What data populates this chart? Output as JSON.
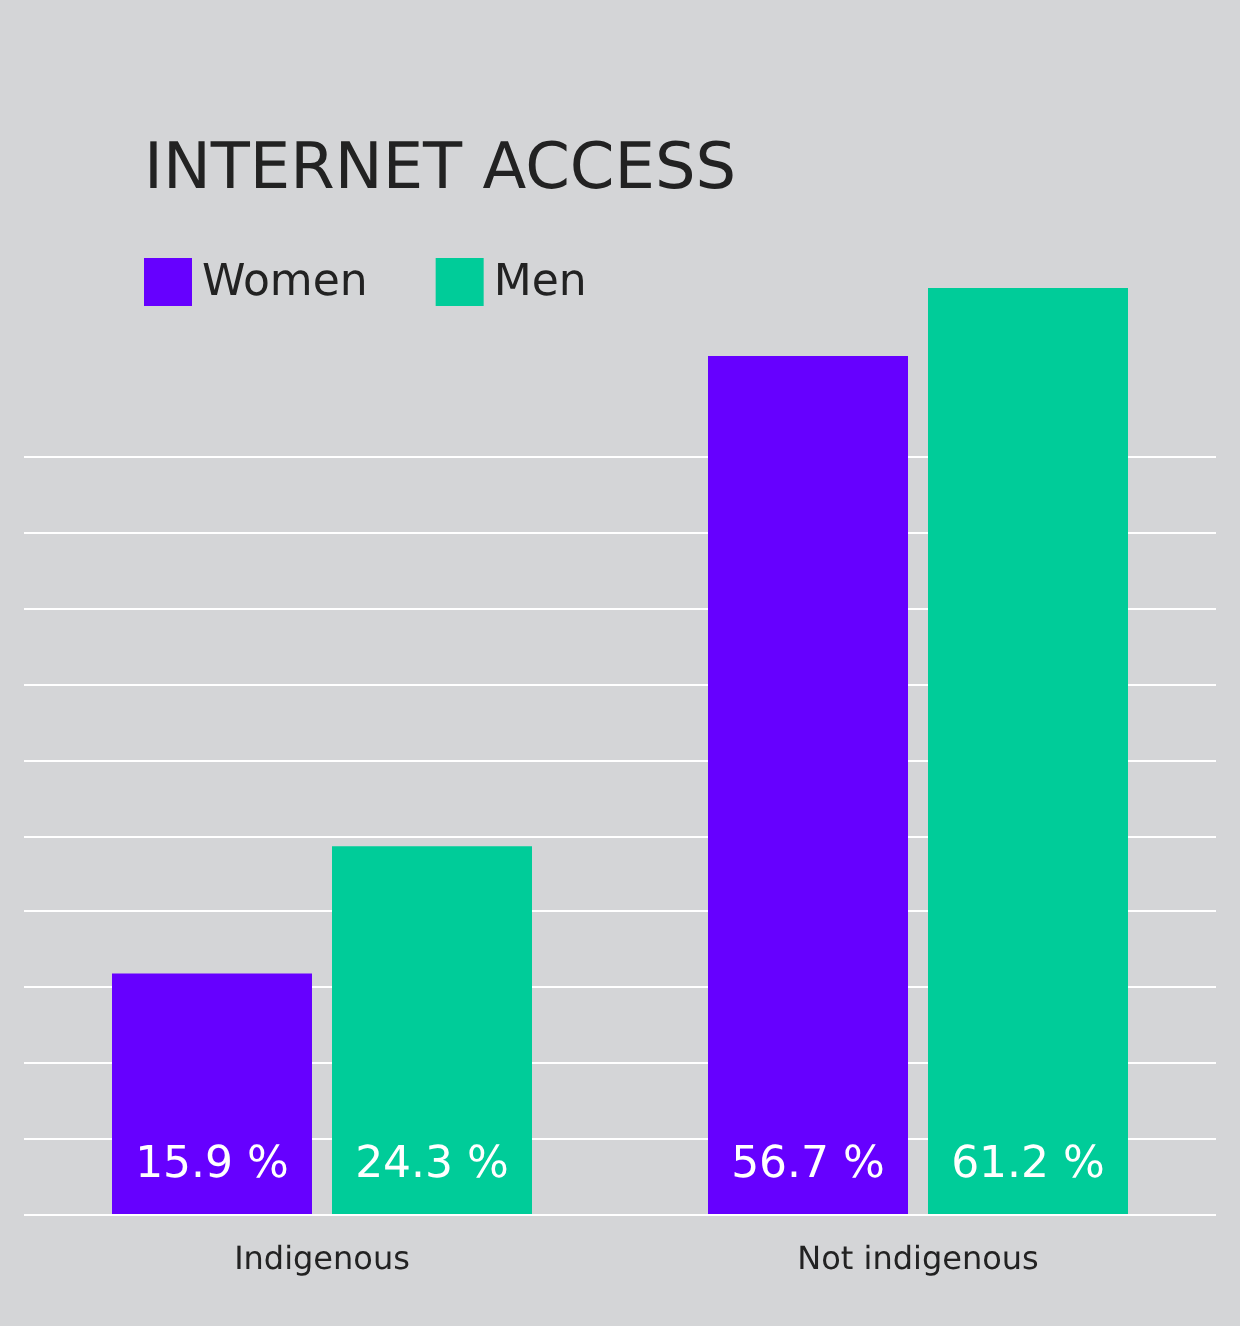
{
  "chart_data": {
    "type": "bar",
    "title": "INTERNET ACCESS",
    "categories": [
      "Indigenous",
      "Not indigenous"
    ],
    "series": [
      {
        "name": "Women",
        "color": "#6600ff",
        "values": [
          15.9,
          56.7
        ],
        "value_labels": [
          "15.9 %",
          "56.7 %"
        ]
      },
      {
        "name": "Men",
        "color": "#00cc99",
        "values": [
          24.3,
          61.2
        ],
        "value_labels": [
          "24.3 %",
          "61.2 %"
        ]
      }
    ],
    "yticks": [
      {
        "value": 0,
        "label": null
      },
      {
        "value": 5,
        "label": null
      },
      {
        "value": 10,
        "label": null
      },
      {
        "value": 15,
        "label": null
      },
      {
        "value": 20,
        "label": null
      },
      {
        "value": 25,
        "label": null
      },
      {
        "value": 30,
        "label": null
      },
      {
        "value": 35,
        "label": null
      },
      {
        "value": 40,
        "label": null
      },
      {
        "value": 45,
        "label": null
      },
      {
        "value": 50,
        "label": null
      }
    ],
    "grid": "y",
    "legend": "top left",
    "tick_labels": "x"
  }
}
